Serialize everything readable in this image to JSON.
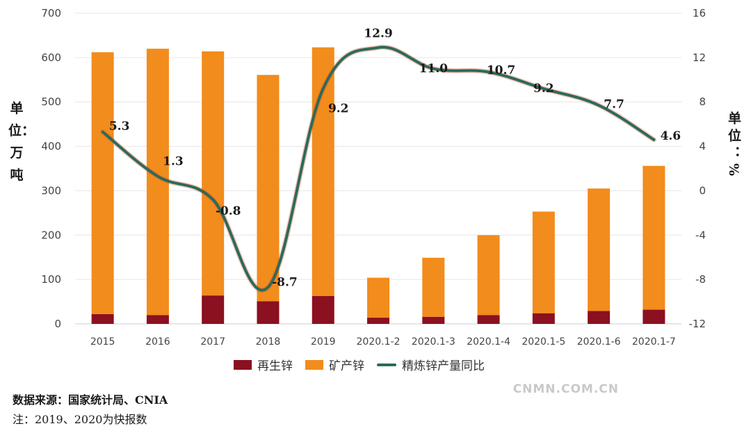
{
  "chart_data": {
    "type": "bar",
    "categories": [
      "2015",
      "2016",
      "2017",
      "2018",
      "2019",
      "2020.1-2",
      "2020.1-3",
      "2020.1-4",
      "2020.1-5",
      "2020.1-6",
      "2020.1-7"
    ],
    "series": [
      {
        "name": "再生锌",
        "type": "bar",
        "stack": "zinc",
        "axis": "left",
        "color": "#8b1020",
        "values": [
          22,
          20,
          64,
          51,
          63,
          14,
          16,
          20,
          24,
          29,
          32
        ]
      },
      {
        "name": "矿产锌",
        "type": "bar",
        "stack": "zinc",
        "axis": "left",
        "color": "#f28c1c",
        "values": [
          590,
          600,
          550,
          510,
          560,
          90,
          133,
          180,
          229,
          276,
          324
        ]
      },
      {
        "name": "精炼锌产量同比",
        "type": "line",
        "axis": "right",
        "color": "#2a6b5a",
        "values": [
          5.3,
          1.3,
          -0.8,
          -8.7,
          9.2,
          12.9,
          11.0,
          10.7,
          9.2,
          7.7,
          4.6
        ],
        "labels": [
          "5.3",
          "1.3",
          "-0.8",
          "-8.7",
          "9.2",
          "12.9",
          "11.0",
          "10.7",
          "9.2",
          "7.7",
          "4.6"
        ]
      }
    ],
    "y_left": {
      "ticks": [
        "0",
        "100",
        "200",
        "300",
        "400",
        "500",
        "600",
        "700"
      ],
      "range": [
        0,
        700
      ]
    },
    "y_right": {
      "ticks": [
        "-12",
        "-8",
        "-4",
        "0",
        "4",
        "8",
        "12",
        "16"
      ],
      "range": [
        -12,
        16
      ]
    },
    "ylabel_left": "单位：万吨",
    "ylabel_right": "单位：%",
    "grid": true,
    "legend": "bottom"
  },
  "source": "数据来源：国家统计局、CNIA",
  "note": "注：2019、2020为快报数",
  "watermark": "CNMN.COM.CN"
}
